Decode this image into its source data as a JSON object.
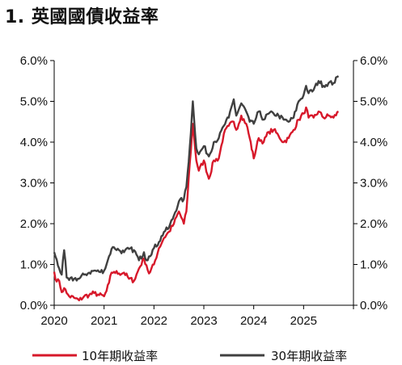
{
  "title": "1. 英國國債收益率",
  "chart_data": {
    "type": "line",
    "title": "1. 英國國債收益率",
    "xlabel": "",
    "ylabel": "",
    "xlim": [
      2020.0,
      2026.0
    ],
    "ylim": [
      0.0,
      6.0
    ],
    "x_ticks": [
      "2020",
      "2021",
      "2022",
      "2023",
      "2024",
      "2025"
    ],
    "y_ticks_left": [
      "0.0%",
      "1.0%",
      "2.0%",
      "3.0%",
      "4.0%",
      "5.0%",
      "6.0%"
    ],
    "y_ticks_right": [
      "0.0%",
      "1.0%",
      "2.0%",
      "3.0%",
      "4.0%",
      "5.0%",
      "6.0%"
    ],
    "grid": false,
    "legend_position": "bottom",
    "series": [
      {
        "name": "10年期收益率",
        "color": "#d7182a",
        "x": [
          2020.0,
          2020.05,
          2020.1,
          2020.15,
          2020.2,
          2020.25,
          2020.3,
          2020.4,
          2020.5,
          2020.6,
          2020.7,
          2020.8,
          2020.9,
          2021.0,
          2021.05,
          2021.1,
          2021.15,
          2021.2,
          2021.3,
          2021.4,
          2021.5,
          2021.6,
          2021.7,
          2021.8,
          2021.85,
          2021.9,
          2022.0,
          2022.1,
          2022.2,
          2022.3,
          2022.4,
          2022.5,
          2022.6,
          2022.65,
          2022.72,
          2022.78,
          2022.85,
          2022.9,
          2023.0,
          2023.1,
          2023.2,
          2023.3,
          2023.4,
          2023.5,
          2023.6,
          2023.65,
          2023.75,
          2023.85,
          2023.92,
          2024.0,
          2024.1,
          2024.2,
          2024.3,
          2024.4,
          2024.5,
          2024.6,
          2024.7,
          2024.8,
          2024.9,
          2025.0,
          2025.05,
          2025.1,
          2025.2,
          2025.3,
          2025.4,
          2025.5,
          2025.6,
          2025.7
        ],
        "values": [
          0.82,
          0.58,
          0.6,
          0.32,
          0.42,
          0.3,
          0.22,
          0.18,
          0.12,
          0.22,
          0.25,
          0.3,
          0.25,
          0.22,
          0.35,
          0.55,
          0.8,
          0.82,
          0.78,
          0.8,
          0.65,
          0.6,
          0.9,
          1.15,
          0.98,
          0.78,
          1.0,
          1.4,
          1.65,
          1.8,
          2.0,
          2.3,
          2.0,
          2.3,
          3.5,
          4.45,
          3.55,
          3.3,
          3.55,
          3.1,
          3.55,
          3.6,
          4.2,
          4.4,
          4.5,
          4.3,
          4.65,
          4.45,
          4.1,
          3.6,
          4.1,
          4.0,
          4.25,
          4.3,
          4.15,
          4.0,
          4.1,
          4.3,
          4.55,
          4.7,
          4.85,
          4.6,
          4.6,
          4.75,
          4.6,
          4.65,
          4.6,
          4.75
        ]
      },
      {
        "name": "30年期收益率",
        "color": "#404040",
        "x": [
          2020.0,
          2020.05,
          2020.1,
          2020.15,
          2020.2,
          2020.25,
          2020.3,
          2020.4,
          2020.5,
          2020.6,
          2020.7,
          2020.8,
          2020.9,
          2021.0,
          2021.05,
          2021.1,
          2021.15,
          2021.2,
          2021.3,
          2021.4,
          2021.5,
          2021.6,
          2021.7,
          2021.8,
          2021.85,
          2021.9,
          2022.0,
          2022.1,
          2022.2,
          2022.3,
          2022.4,
          2022.5,
          2022.6,
          2022.65,
          2022.72,
          2022.78,
          2022.85,
          2022.9,
          2023.0,
          2023.1,
          2023.2,
          2023.3,
          2023.4,
          2023.5,
          2023.6,
          2023.65,
          2023.75,
          2023.85,
          2023.92,
          2024.0,
          2024.1,
          2024.2,
          2024.3,
          2024.4,
          2024.5,
          2024.6,
          2024.7,
          2024.8,
          2024.9,
          2025.0,
          2025.05,
          2025.1,
          2025.2,
          2025.3,
          2025.4,
          2025.5,
          2025.6,
          2025.7
        ],
        "values": [
          1.3,
          1.12,
          0.9,
          0.75,
          1.35,
          0.68,
          0.62,
          0.65,
          0.65,
          0.75,
          0.8,
          0.85,
          0.82,
          0.85,
          1.0,
          1.2,
          1.38,
          1.42,
          1.35,
          1.3,
          1.38,
          1.35,
          1.1,
          1.3,
          1.1,
          1.2,
          1.4,
          1.55,
          1.8,
          1.9,
          2.2,
          2.55,
          2.6,
          2.9,
          3.9,
          5.0,
          3.85,
          3.7,
          3.9,
          3.65,
          4.0,
          4.1,
          4.4,
          4.6,
          5.05,
          4.65,
          4.95,
          4.75,
          4.5,
          4.45,
          4.75,
          4.55,
          4.7,
          4.7,
          4.65,
          4.55,
          4.5,
          4.6,
          5.0,
          5.15,
          5.38,
          5.2,
          5.28,
          5.5,
          5.38,
          5.45,
          5.45,
          5.62
        ]
      }
    ]
  }
}
